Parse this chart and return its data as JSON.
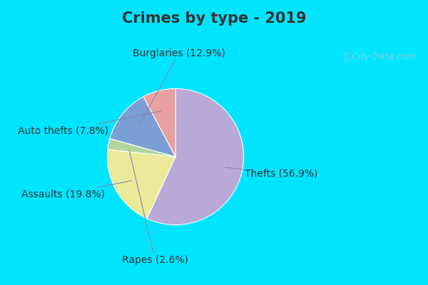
{
  "title": "Crimes by type - 2019",
  "labels": [
    "Thefts",
    "Assaults",
    "Rapes",
    "Burglaries",
    "Auto thefts"
  ],
  "values": [
    56.9,
    19.8,
    2.6,
    12.9,
    7.8
  ],
  "colors": [
    "#b8a9d9",
    "#eaea99",
    "#b2d4a0",
    "#7b9ed4",
    "#e8a0a0"
  ],
  "label_texts": [
    "Thefts (56.9%)",
    "Assaults (19.8%)",
    "Rapes (2.6%)",
    "Burglaries (12.9%)",
    "Auto thefts (7.8%)"
  ],
  "bg_cyan": "#00e5ff",
  "bg_chart": "#d4ede0",
  "title_fontsize": 15,
  "label_fontsize": 10,
  "title_color": "#333333",
  "watermark_color": "#a0c8d0"
}
